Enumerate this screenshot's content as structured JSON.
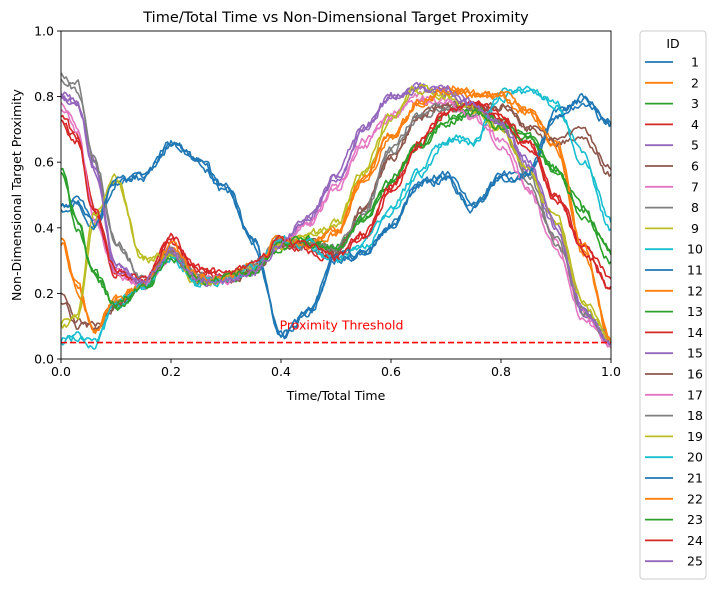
{
  "chart_data": {
    "type": "line",
    "title": "Time/Total Time vs Non-Dimensional Target Proximity",
    "xlabel": "Time/Total Time",
    "ylabel": "Non-Dimensional Target Proximity",
    "xlim": [
      0.0,
      1.0
    ],
    "ylim": [
      0.0,
      1.0
    ],
    "xticks": [
      "0.0",
      "0.2",
      "0.4",
      "0.6",
      "0.8",
      "1.0"
    ],
    "yticks": [
      "0.0",
      "0.2",
      "0.4",
      "0.6",
      "0.8",
      "1.0"
    ],
    "grid": false,
    "legend": {
      "title": "ID",
      "placement": "outside-right"
    },
    "threshold": {
      "value": 0.05,
      "label": "Proximity Threshold",
      "color": "#ff0000",
      "style": "dashed"
    },
    "x": [
      0.0,
      0.03,
      0.06,
      0.1,
      0.15,
      0.2,
      0.25,
      0.3,
      0.35,
      0.4,
      0.45,
      0.5,
      0.55,
      0.6,
      0.65,
      0.7,
      0.75,
      0.8,
      0.85,
      0.9,
      0.95,
      1.0
    ],
    "series": [
      {
        "name": "1",
        "color": "#1f77b4",
        "values": [
          0.46,
          0.48,
          0.42,
          0.54,
          0.55,
          0.66,
          0.61,
          0.52,
          0.36,
          0.07,
          0.14,
          0.3,
          0.32,
          0.4,
          0.53,
          0.55,
          0.46,
          0.55,
          0.56,
          0.74,
          0.79,
          0.71
        ]
      },
      {
        "name": "2",
        "color": "#ff7f0e",
        "values": [
          0.35,
          0.22,
          0.08,
          0.18,
          0.22,
          0.33,
          0.24,
          0.25,
          0.28,
          0.36,
          0.35,
          0.39,
          0.55,
          0.68,
          0.78,
          0.82,
          0.81,
          0.8,
          0.76,
          0.66,
          0.33,
          0.05
        ]
      },
      {
        "name": "3",
        "color": "#2ca02c",
        "values": [
          0.58,
          0.4,
          0.25,
          0.16,
          0.22,
          0.32,
          0.24,
          0.25,
          0.27,
          0.34,
          0.36,
          0.34,
          0.42,
          0.54,
          0.64,
          0.72,
          0.76,
          0.72,
          0.67,
          0.57,
          0.45,
          0.32
        ]
      },
      {
        "name": "4",
        "color": "#d62728",
        "values": [
          0.74,
          0.68,
          0.46,
          0.27,
          0.23,
          0.36,
          0.27,
          0.25,
          0.28,
          0.36,
          0.33,
          0.31,
          0.38,
          0.52,
          0.66,
          0.76,
          0.78,
          0.74,
          0.66,
          0.5,
          0.34,
          0.22
        ]
      },
      {
        "name": "5",
        "color": "#9467bd",
        "values": [
          0.8,
          0.78,
          0.6,
          0.28,
          0.23,
          0.33,
          0.24,
          0.24,
          0.27,
          0.35,
          0.43,
          0.55,
          0.7,
          0.8,
          0.83,
          0.82,
          0.78,
          0.73,
          0.6,
          0.42,
          0.16,
          0.05
        ]
      },
      {
        "name": "6",
        "color": "#8c564b",
        "values": [
          0.2,
          0.11,
          0.1,
          0.16,
          0.23,
          0.32,
          0.24,
          0.24,
          0.27,
          0.35,
          0.35,
          0.32,
          0.46,
          0.62,
          0.74,
          0.78,
          0.76,
          0.77,
          0.7,
          0.66,
          0.68,
          0.56
        ]
      },
      {
        "name": "7",
        "color": "#e377c2",
        "values": [
          0.78,
          0.7,
          0.44,
          0.26,
          0.22,
          0.32,
          0.24,
          0.24,
          0.28,
          0.35,
          0.42,
          0.52,
          0.66,
          0.75,
          0.8,
          0.78,
          0.74,
          0.67,
          0.52,
          0.35,
          0.13,
          0.04
        ]
      },
      {
        "name": "8",
        "color": "#7f7f7f",
        "values": [
          0.85,
          0.84,
          0.62,
          0.36,
          0.25,
          0.33,
          0.25,
          0.25,
          0.29,
          0.36,
          0.35,
          0.34,
          0.44,
          0.63,
          0.74,
          0.77,
          0.76,
          0.71,
          0.56,
          0.37,
          0.15,
          0.06
        ]
      },
      {
        "name": "9",
        "color": "#bcbd22",
        "values": [
          0.1,
          0.12,
          0.42,
          0.54,
          0.3,
          0.32,
          0.23,
          0.25,
          0.28,
          0.35,
          0.38,
          0.4,
          0.56,
          0.73,
          0.82,
          0.8,
          0.76,
          0.7,
          0.58,
          0.43,
          0.18,
          0.05
        ]
      },
      {
        "name": "10",
        "color": "#17becf",
        "values": [
          0.05,
          0.07,
          0.04,
          0.17,
          0.22,
          0.31,
          0.23,
          0.24,
          0.28,
          0.36,
          0.35,
          0.3,
          0.34,
          0.45,
          0.56,
          0.66,
          0.66,
          0.8,
          0.82,
          0.78,
          0.62,
          0.42
        ]
      },
      {
        "name": "11",
        "color": "#1f77b4",
        "values": [
          0.46,
          0.48,
          0.4,
          0.54,
          0.55,
          0.66,
          0.61,
          0.52,
          0.36,
          0.07,
          0.14,
          0.3,
          0.32,
          0.4,
          0.53,
          0.55,
          0.46,
          0.56,
          0.57,
          0.75,
          0.78,
          0.71
        ]
      },
      {
        "name": "12",
        "color": "#ff7f0e",
        "values": [
          0.36,
          0.22,
          0.09,
          0.18,
          0.22,
          0.33,
          0.24,
          0.25,
          0.28,
          0.36,
          0.34,
          0.38,
          0.54,
          0.67,
          0.78,
          0.83,
          0.81,
          0.8,
          0.75,
          0.65,
          0.32,
          0.06
        ]
      },
      {
        "name": "13",
        "color": "#2ca02c",
        "values": [
          0.56,
          0.42,
          0.26,
          0.16,
          0.22,
          0.32,
          0.24,
          0.25,
          0.27,
          0.34,
          0.36,
          0.33,
          0.43,
          0.55,
          0.65,
          0.73,
          0.76,
          0.72,
          0.68,
          0.58,
          0.46,
          0.3
        ]
      },
      {
        "name": "14",
        "color": "#d62728",
        "values": [
          0.72,
          0.66,
          0.44,
          0.26,
          0.23,
          0.36,
          0.27,
          0.25,
          0.28,
          0.36,
          0.33,
          0.3,
          0.37,
          0.51,
          0.65,
          0.76,
          0.78,
          0.74,
          0.66,
          0.5,
          0.35,
          0.25
        ]
      },
      {
        "name": "15",
        "color": "#9467bd",
        "values": [
          0.79,
          0.77,
          0.58,
          0.27,
          0.23,
          0.33,
          0.24,
          0.24,
          0.27,
          0.35,
          0.44,
          0.56,
          0.71,
          0.8,
          0.83,
          0.81,
          0.78,
          0.72,
          0.58,
          0.4,
          0.14,
          0.04
        ]
      },
      {
        "name": "16",
        "color": "#8c564b",
        "values": [
          0.18,
          0.1,
          0.1,
          0.16,
          0.23,
          0.32,
          0.24,
          0.24,
          0.27,
          0.35,
          0.35,
          0.32,
          0.45,
          0.61,
          0.73,
          0.78,
          0.76,
          0.77,
          0.7,
          0.67,
          0.69,
          0.58
        ]
      },
      {
        "name": "17",
        "color": "#e377c2",
        "values": [
          0.77,
          0.69,
          0.43,
          0.26,
          0.22,
          0.32,
          0.24,
          0.24,
          0.28,
          0.35,
          0.41,
          0.51,
          0.65,
          0.74,
          0.79,
          0.78,
          0.74,
          0.66,
          0.51,
          0.34,
          0.12,
          0.04
        ]
      },
      {
        "name": "18",
        "color": "#7f7f7f",
        "values": [
          0.88,
          0.82,
          0.6,
          0.35,
          0.25,
          0.33,
          0.25,
          0.25,
          0.29,
          0.36,
          0.35,
          0.34,
          0.45,
          0.64,
          0.75,
          0.77,
          0.76,
          0.71,
          0.55,
          0.36,
          0.14,
          0.05
        ]
      },
      {
        "name": "19",
        "color": "#bcbd22",
        "values": [
          0.11,
          0.13,
          0.44,
          0.55,
          0.3,
          0.32,
          0.23,
          0.25,
          0.28,
          0.35,
          0.38,
          0.41,
          0.57,
          0.74,
          0.83,
          0.8,
          0.76,
          0.7,
          0.57,
          0.42,
          0.17,
          0.06
        ]
      },
      {
        "name": "20",
        "color": "#17becf",
        "values": [
          0.06,
          0.07,
          0.05,
          0.17,
          0.22,
          0.31,
          0.23,
          0.24,
          0.28,
          0.36,
          0.35,
          0.3,
          0.35,
          0.46,
          0.57,
          0.67,
          0.67,
          0.81,
          0.82,
          0.77,
          0.6,
          0.4
        ]
      },
      {
        "name": "21",
        "color": "#1f77b4",
        "values": [
          0.47,
          0.49,
          0.41,
          0.54,
          0.56,
          0.65,
          0.6,
          0.51,
          0.35,
          0.06,
          0.15,
          0.31,
          0.33,
          0.41,
          0.54,
          0.56,
          0.47,
          0.55,
          0.57,
          0.73,
          0.8,
          0.72
        ]
      },
      {
        "name": "22",
        "color": "#ff7f0e",
        "values": [
          0.37,
          0.21,
          0.08,
          0.18,
          0.22,
          0.34,
          0.25,
          0.25,
          0.28,
          0.37,
          0.35,
          0.38,
          0.55,
          0.68,
          0.79,
          0.82,
          0.8,
          0.81,
          0.75,
          0.66,
          0.34,
          0.05
        ]
      },
      {
        "name": "23",
        "color": "#2ca02c",
        "values": [
          0.57,
          0.41,
          0.26,
          0.17,
          0.22,
          0.31,
          0.24,
          0.25,
          0.27,
          0.35,
          0.36,
          0.34,
          0.42,
          0.54,
          0.65,
          0.72,
          0.75,
          0.71,
          0.67,
          0.57,
          0.44,
          0.33
        ]
      },
      {
        "name": "24",
        "color": "#d62728",
        "values": [
          0.73,
          0.67,
          0.45,
          0.27,
          0.24,
          0.37,
          0.27,
          0.26,
          0.28,
          0.36,
          0.34,
          0.31,
          0.38,
          0.52,
          0.66,
          0.75,
          0.77,
          0.73,
          0.65,
          0.49,
          0.33,
          0.21
        ]
      },
      {
        "name": "25",
        "color": "#9467bd",
        "values": [
          0.81,
          0.78,
          0.59,
          0.28,
          0.24,
          0.33,
          0.24,
          0.24,
          0.27,
          0.35,
          0.43,
          0.55,
          0.7,
          0.8,
          0.82,
          0.82,
          0.77,
          0.72,
          0.59,
          0.41,
          0.15,
          0.05
        ]
      }
    ]
  }
}
